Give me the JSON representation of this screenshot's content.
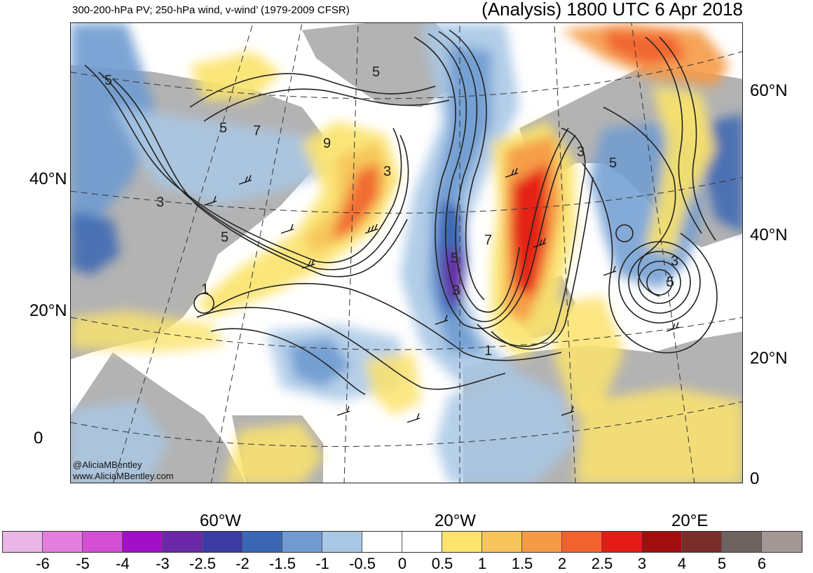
{
  "header": {
    "left_title": "300-200-hPa PV; 250-hPa wind, v-wind’ (1979-2009 CFSR)",
    "right_title": "(Analysis) 1800 UTC 6 Apr 2018"
  },
  "map": {
    "left_lat_labels": [
      "40°N",
      "20°N",
      "0"
    ],
    "right_lat_labels": [
      "60°N",
      "40°N",
      "20°N",
      "0"
    ],
    "lon_labels": [
      "60°W",
      "20°W",
      "20°E"
    ],
    "contour_labels": [
      "5",
      "5",
      "7",
      "3",
      "5",
      "1",
      "9",
      "3",
      "5",
      "5",
      "3",
      "7",
      "3",
      "5",
      "3",
      "5",
      "1"
    ],
    "credit_line1": "@AliciaMBentley",
    "credit_line2": "www.AliciaMBentley.com"
  },
  "colorbar": {
    "colors": [
      "#e9b6e6",
      "#e47fe0",
      "#d44fd4",
      "#a20fc8",
      "#6a28a8",
      "#3b3ba3",
      "#3a66b4",
      "#6f9bd0",
      "#a9c8e6",
      "#ffffff",
      "#ffffff",
      "#fbe36c",
      "#f6c45a",
      "#f59a45",
      "#f2622f",
      "#e41b16",
      "#a20e0e",
      "#7a2e2a",
      "#6e6260",
      "#a39896"
    ],
    "tick_labels": [
      "-6",
      "-5",
      "-4",
      "-3",
      "-2.5",
      "-2",
      "-1.5",
      "-1",
      "-0.5",
      "0",
      "0.5",
      "1",
      "1.5",
      "2",
      "2.5",
      "3",
      "4",
      "5",
      "6"
    ]
  }
}
